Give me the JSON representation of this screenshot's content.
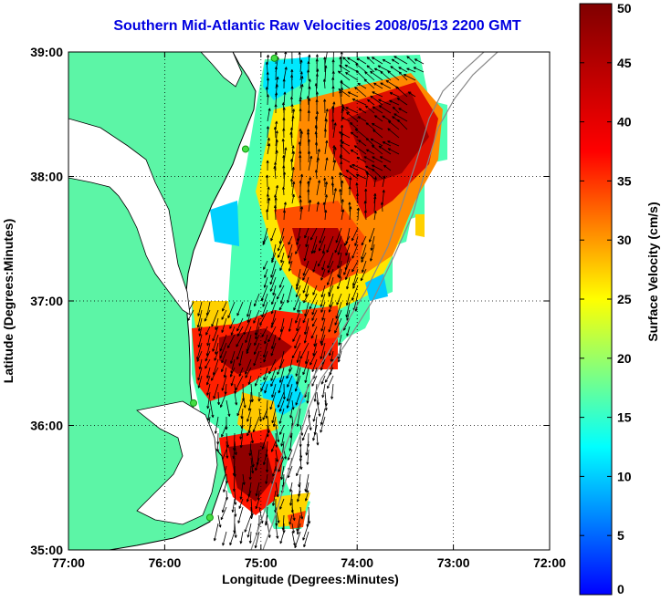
{
  "title": "Southern Mid-Atlantic Raw Velocities 2008/05/13 2200 GMT",
  "x_axis": {
    "label": "Longitude (Degrees:Minutes)",
    "ticks": [
      "77:00",
      "76:00",
      "75:00",
      "74:00",
      "73:00",
      "72:00"
    ]
  },
  "y_axis": {
    "label": "Latitude (Degrees:Minutes)",
    "ticks": [
      "39:00",
      "38:00",
      "37:00",
      "36:00",
      "35:00"
    ]
  },
  "colorbar": {
    "label": "Surface Velocity (cm/s)",
    "ticks": [
      "0",
      "5",
      "10",
      "15",
      "20",
      "25",
      "30",
      "35",
      "40",
      "45",
      "50"
    ],
    "min": 0,
    "max": 50
  },
  "colors": {
    "land": "#5cf5a6",
    "coast": "#000000",
    "grid": "#000000",
    "title": "#0000e0",
    "stations": "#44dd44"
  },
  "map_extent": {
    "lon": [
      -77,
      -72
    ],
    "lat": [
      35,
      39
    ]
  },
  "stations": [
    {
      "lon": -74.86,
      "lat": 38.95
    },
    {
      "lon": -75.16,
      "lat": 38.22
    },
    {
      "lon": -75.7,
      "lat": 36.18
    },
    {
      "lon": -75.53,
      "lat": 35.26
    }
  ]
}
